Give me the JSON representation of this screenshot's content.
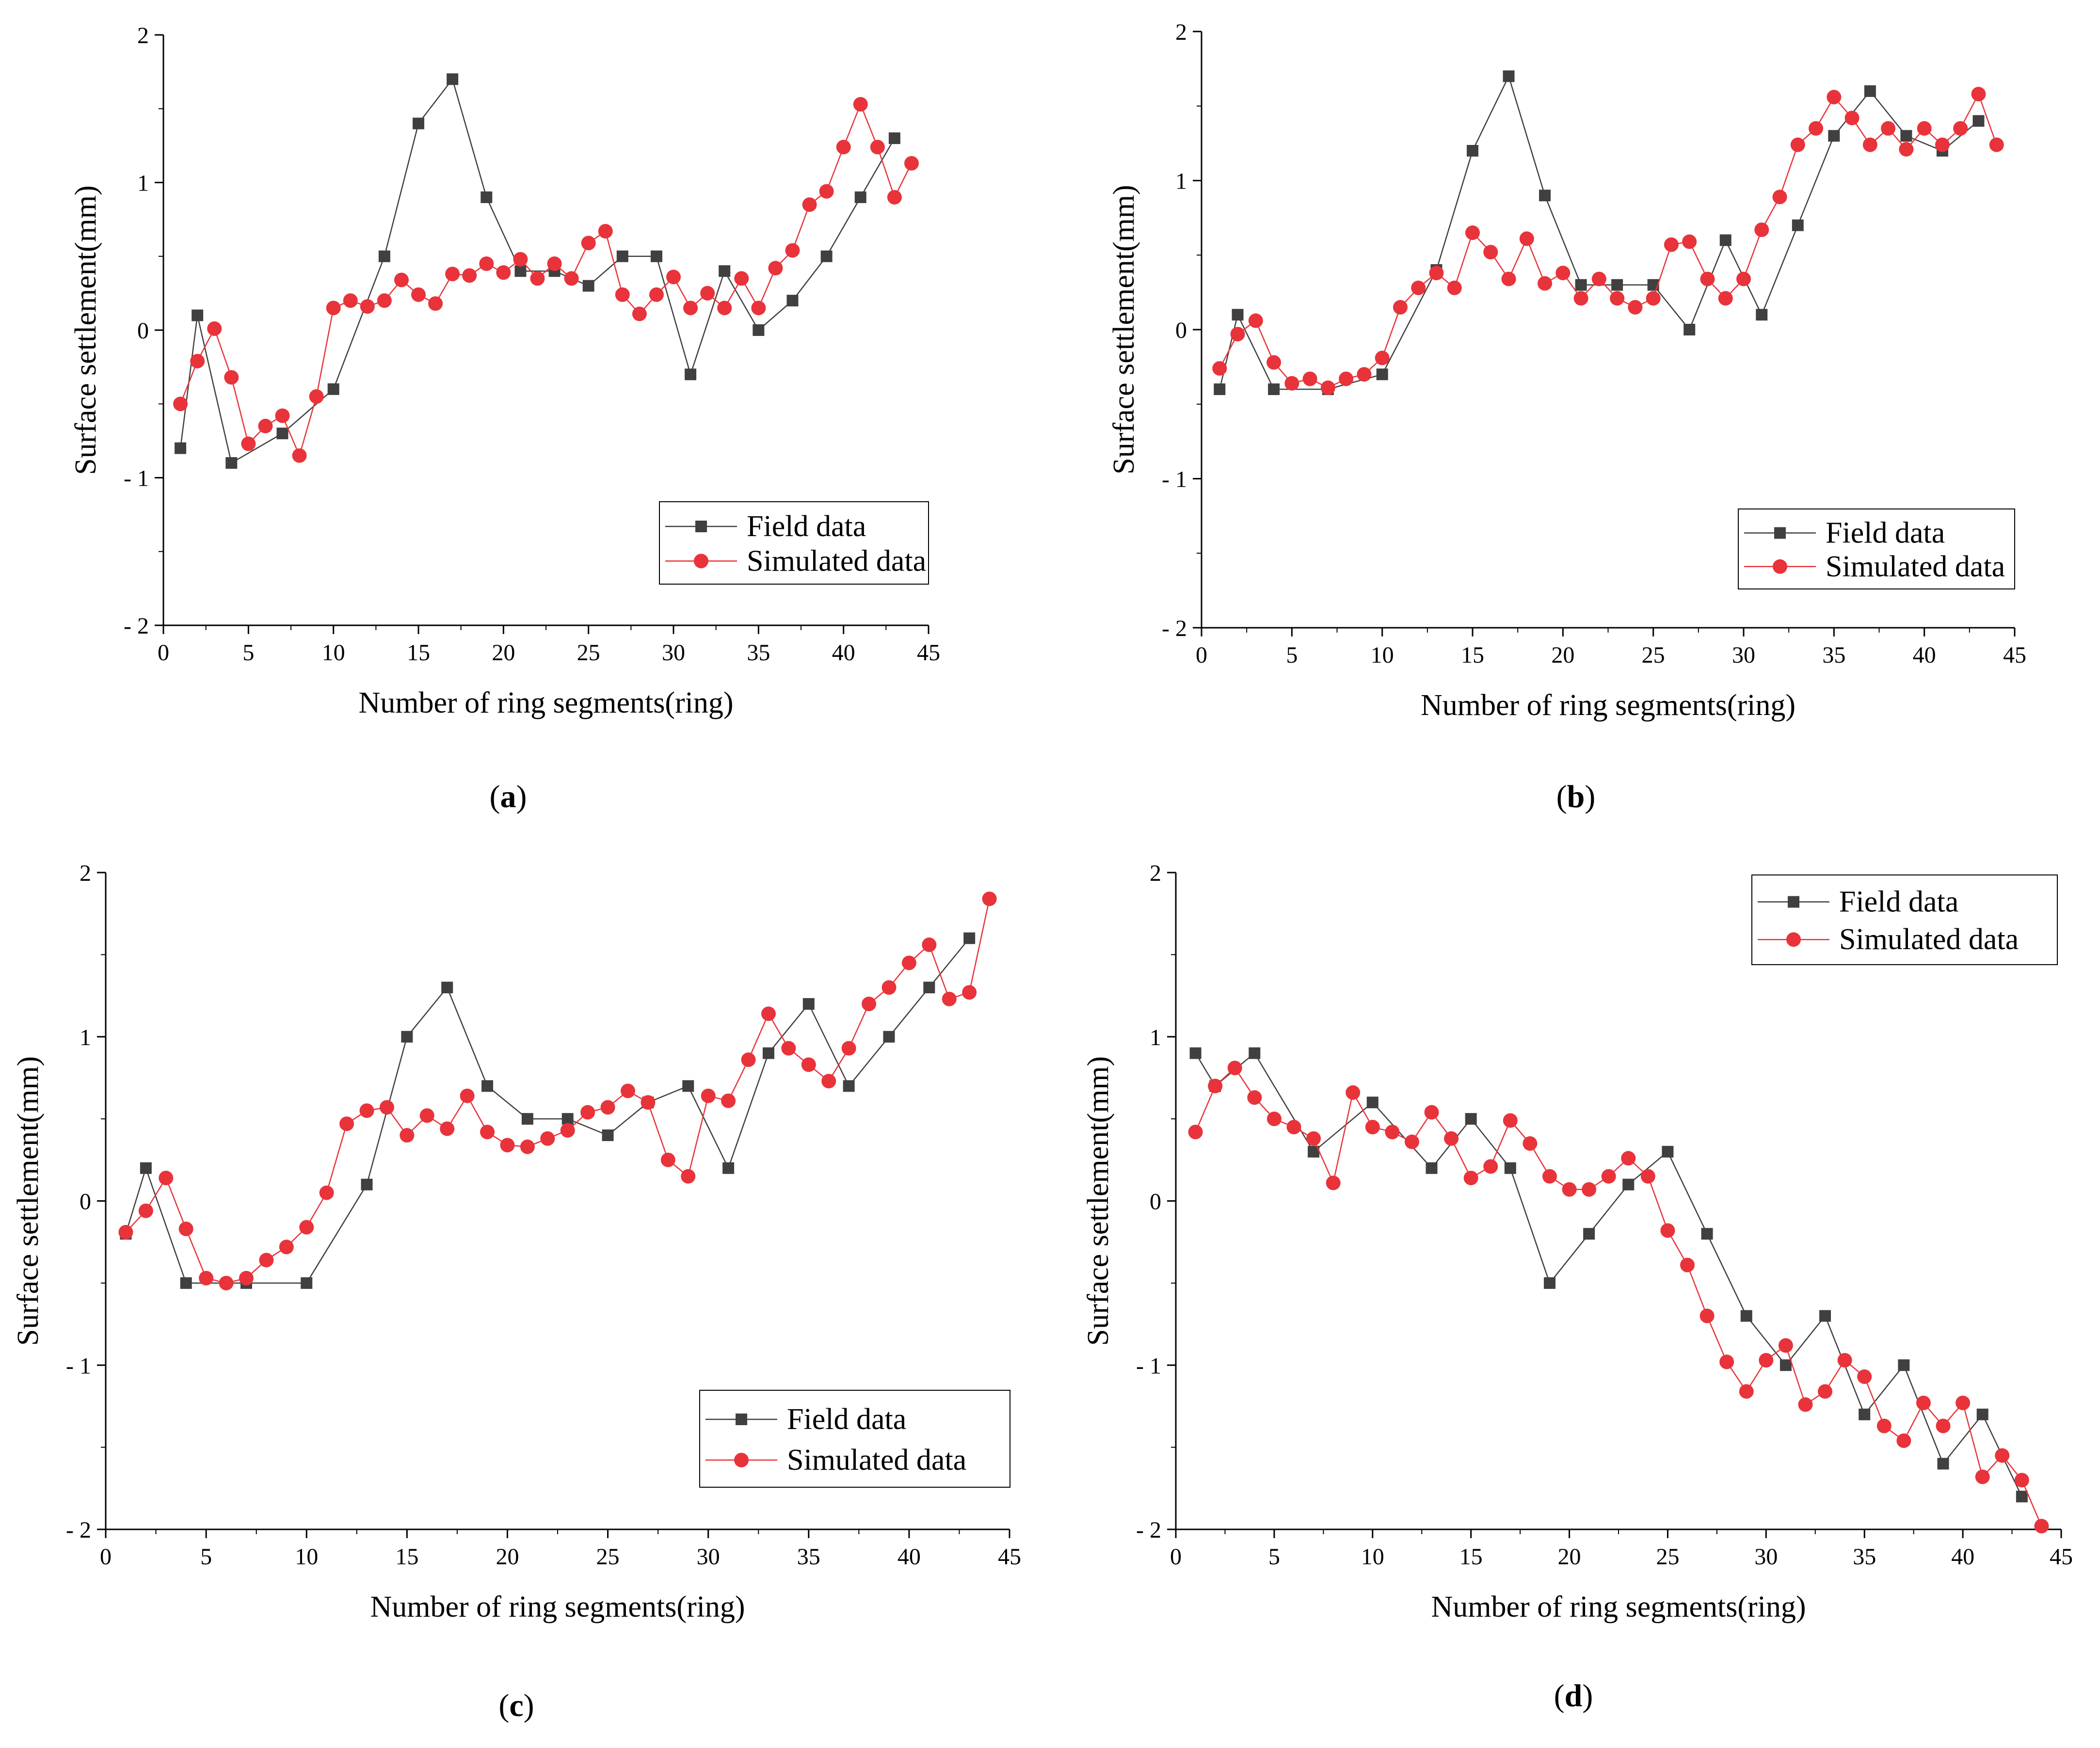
{
  "figure": {
    "colors": {
      "field": "#404040",
      "simulated": "#e8333a",
      "axis": "#000000"
    }
  },
  "chart_data": [
    {
      "type": "line",
      "panel": "(a)",
      "panel_letter": "a",
      "xlabel": "Number of ring segments(ring)",
      "ylabel": "Surface settlement(mm)",
      "xlim": [
        0,
        45
      ],
      "ylim": [
        -2,
        2
      ],
      "xticks": [
        "0",
        "5",
        "10",
        "15",
        "20",
        "25",
        "30",
        "35",
        "40",
        "45"
      ],
      "yticks": [
        "- 2",
        "- 1",
        "0",
        "1",
        "2"
      ],
      "legend": [
        "Field data",
        "Simulated data"
      ],
      "legend_position": "lower-right",
      "series": [
        {
          "name": "Field data",
          "marker": "square",
          "x": [
            1,
            2,
            4,
            7,
            10,
            13,
            15,
            17,
            19,
            21,
            23,
            25,
            27,
            29,
            31,
            33,
            35,
            37,
            39,
            41,
            43
          ],
          "y": [
            -0.8,
            0.1,
            -0.9,
            -0.7,
            -0.4,
            0.5,
            1.4,
            1.7,
            0.9,
            0.4,
            0.4,
            0.3,
            0.5,
            0.5,
            -0.3,
            0.4,
            0.0,
            0.2,
            0.5,
            0.9,
            1.3
          ]
        },
        {
          "name": "Simulated data",
          "marker": "circle",
          "x": [
            1,
            2,
            3,
            4,
            5,
            6,
            7,
            8,
            9,
            10,
            11,
            12,
            13,
            14,
            15,
            16,
            17,
            18,
            19,
            20,
            21,
            22,
            23,
            24,
            25,
            26,
            27,
            28,
            29,
            30,
            31,
            32,
            33,
            34,
            35,
            36,
            37,
            38,
            39,
            40,
            41,
            42,
            43,
            44
          ],
          "y": [
            -0.5,
            -0.21,
            0.01,
            -0.32,
            -0.77,
            -0.65,
            -0.58,
            -0.85,
            -0.45,
            0.15,
            0.2,
            0.16,
            0.2,
            0.34,
            0.24,
            0.18,
            0.38,
            0.37,
            0.45,
            0.39,
            0.48,
            0.35,
            0.45,
            0.35,
            0.59,
            0.67,
            0.24,
            0.11,
            0.24,
            0.36,
            0.15,
            0.25,
            0.15,
            0.35,
            0.15,
            0.42,
            0.54,
            0.85,
            0.94,
            1.24,
            1.53,
            1.24,
            0.9,
            1.13
          ]
        }
      ]
    },
    {
      "type": "line",
      "panel": "(b)",
      "panel_letter": "b",
      "xlabel": "Number of ring segments(ring)",
      "ylabel": "Surface settlement(mm)",
      "xlim": [
        0,
        45
      ],
      "ylim": [
        -2,
        2
      ],
      "xticks": [
        "0",
        "5",
        "10",
        "15",
        "20",
        "25",
        "30",
        "35",
        "40",
        "45"
      ],
      "yticks": [
        "- 2",
        "- 1",
        "0",
        "1",
        "2"
      ],
      "legend": [
        "Field data",
        "Simulated data"
      ],
      "legend_position": "lower-right",
      "series": [
        {
          "name": "Field data",
          "marker": "square",
          "x": [
            1,
            2,
            4,
            7,
            10,
            13,
            15,
            17,
            19,
            21,
            23,
            25,
            27,
            29,
            31,
            33,
            35,
            37,
            39,
            41,
            43
          ],
          "y": [
            -0.4,
            0.1,
            -0.4,
            -0.4,
            -0.3,
            0.4,
            1.2,
            1.7,
            0.9,
            0.3,
            0.3,
            0.3,
            0.0,
            0.6,
            0.1,
            0.7,
            1.3,
            1.6,
            1.3,
            1.2,
            1.4
          ]
        },
        {
          "name": "Simulated data",
          "marker": "circle",
          "x": [
            1,
            2,
            3,
            4,
            5,
            6,
            7,
            8,
            9,
            10,
            11,
            12,
            13,
            14,
            15,
            16,
            17,
            18,
            19,
            20,
            21,
            22,
            23,
            24,
            25,
            26,
            27,
            28,
            29,
            30,
            31,
            32,
            33,
            34,
            35,
            36,
            37,
            38,
            39,
            40,
            41,
            42,
            43,
            44
          ],
          "y": [
            -0.26,
            -0.03,
            0.06,
            -0.22,
            -0.36,
            -0.33,
            -0.39,
            -0.33,
            -0.3,
            -0.19,
            0.15,
            0.28,
            0.38,
            0.28,
            0.65,
            0.52,
            0.34,
            0.61,
            0.31,
            0.38,
            0.21,
            0.34,
            0.21,
            0.15,
            0.21,
            0.57,
            0.59,
            0.34,
            0.21,
            0.34,
            0.67,
            0.89,
            1.24,
            1.35,
            1.56,
            1.42,
            1.24,
            1.35,
            1.21,
            1.35,
            1.24,
            1.35,
            1.58,
            1.24
          ]
        }
      ]
    },
    {
      "type": "line",
      "panel": "(c)",
      "panel_letter": "c",
      "xlabel": "Number of ring segments(ring)",
      "ylabel": "Surface settlement(mm)",
      "xlim": [
        0,
        45
      ],
      "ylim": [
        -2,
        2
      ],
      "xticks": [
        "0",
        "5",
        "10",
        "15",
        "20",
        "25",
        "30",
        "35",
        "40",
        "45"
      ],
      "yticks": [
        "- 2",
        "- 1",
        "0",
        "1",
        "2"
      ],
      "legend": [
        "Field data",
        "Simulated data"
      ],
      "legend_position": "lower-right",
      "series": [
        {
          "name": "Field data",
          "marker": "square",
          "x": [
            1,
            2,
            4,
            7,
            10,
            13,
            15,
            17,
            19,
            21,
            23,
            25,
            27,
            29,
            31,
            33,
            35,
            37,
            39,
            41,
            43
          ],
          "y": [
            -0.2,
            0.2,
            -0.5,
            -0.5,
            -0.5,
            0.1,
            1.0,
            1.3,
            0.7,
            0.5,
            0.5,
            0.4,
            0.6,
            0.7,
            0.2,
            0.9,
            1.2,
            0.7,
            1.0,
            1.3,
            1.6
          ]
        },
        {
          "name": "Simulated data",
          "marker": "circle",
          "x": [
            1,
            2,
            3,
            4,
            5,
            6,
            7,
            8,
            9,
            10,
            11,
            12,
            13,
            14,
            15,
            16,
            17,
            18,
            19,
            20,
            21,
            22,
            23,
            24,
            25,
            26,
            27,
            28,
            29,
            30,
            31,
            32,
            33,
            34,
            35,
            36,
            37,
            38,
            39,
            40,
            41,
            42,
            43,
            44
          ],
          "y": [
            -0.19,
            -0.06,
            0.14,
            -0.17,
            -0.47,
            -0.5,
            -0.47,
            -0.36,
            -0.28,
            -0.16,
            0.05,
            0.47,
            0.55,
            0.57,
            0.4,
            0.52,
            0.44,
            0.64,
            0.42,
            0.34,
            0.33,
            0.38,
            0.43,
            0.54,
            0.57,
            0.67,
            0.6,
            0.25,
            0.15,
            0.64,
            0.61,
            0.86,
            1.14,
            0.93,
            0.83,
            0.73,
            0.93,
            1.2,
            1.3,
            1.45,
            1.56,
            1.23,
            1.27,
            1.84
          ]
        }
      ]
    },
    {
      "type": "line",
      "panel": "(d)",
      "panel_letter": "d",
      "xlabel": "Number of ring segments(ring)",
      "ylabel": "Surface settlement(mm)",
      "xlim": [
        0,
        45
      ],
      "ylim": [
        -2,
        2
      ],
      "xticks": [
        "0",
        "5",
        "10",
        "15",
        "20",
        "25",
        "30",
        "35",
        "40",
        "45"
      ],
      "yticks": [
        "- 2",
        "- 1",
        "0",
        "1",
        "2"
      ],
      "legend": [
        "Field data",
        "Simulated data"
      ],
      "legend_position": "top-right",
      "series": [
        {
          "name": "Field data",
          "marker": "square",
          "x": [
            1,
            2,
            4,
            7,
            10,
            13,
            15,
            17,
            19,
            21,
            23,
            25,
            27,
            29,
            31,
            33,
            35,
            37,
            39,
            41,
            43
          ],
          "y": [
            0.9,
            0.7,
            0.9,
            0.3,
            0.6,
            0.2,
            0.5,
            0.2,
            -0.5,
            -0.2,
            0.1,
            0.3,
            -0.2,
            -0.7,
            -1.0,
            -0.7,
            -1.3,
            -1.0,
            -1.6,
            -1.3,
            -1.8
          ]
        },
        {
          "name": "Simulated data",
          "marker": "circle",
          "x": [
            1,
            2,
            3,
            4,
            5,
            6,
            7,
            8,
            9,
            10,
            11,
            12,
            13,
            14,
            15,
            16,
            17,
            18,
            19,
            20,
            21,
            22,
            23,
            24,
            25,
            26,
            27,
            28,
            29,
            30,
            31,
            32,
            33,
            34,
            35,
            36,
            37,
            38,
            39,
            40,
            41,
            42,
            43,
            44
          ],
          "y": [
            0.42,
            0.7,
            0.81,
            0.63,
            0.5,
            0.45,
            0.38,
            0.11,
            0.66,
            0.45,
            0.42,
            0.36,
            0.54,
            0.38,
            0.14,
            0.21,
            0.49,
            0.35,
            0.15,
            0.07,
            0.07,
            0.15,
            0.26,
            0.15,
            -0.18,
            -0.39,
            -0.7,
            -0.98,
            -1.16,
            -0.97,
            -0.88,
            -1.24,
            -1.16,
            -0.97,
            -1.07,
            -1.37,
            -1.46,
            -1.23,
            -1.37,
            -1.23,
            -1.68,
            -1.55,
            -1.7,
            -1.98
          ]
        }
      ]
    }
  ]
}
